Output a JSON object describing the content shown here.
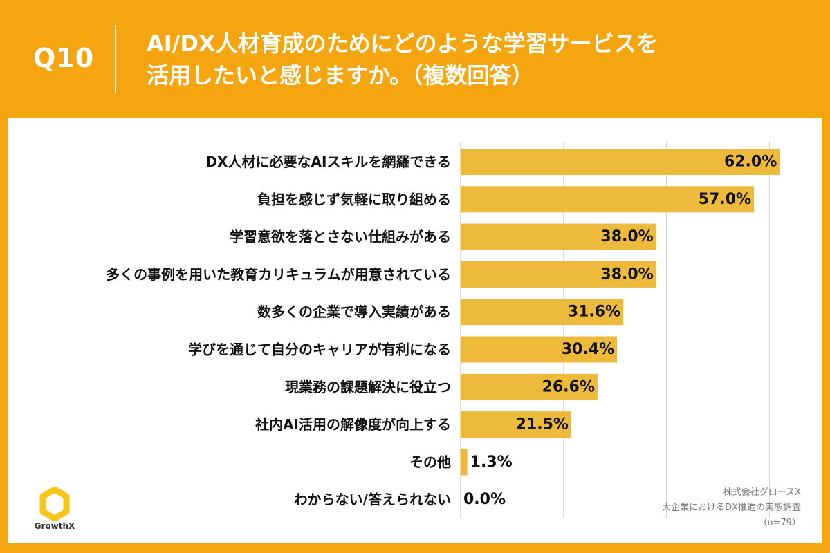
{
  "header": {
    "question": "Q10",
    "title_line1": "AI/DX人材育成のためにどのような学習サービスを",
    "title_line2": "活用したいと感じますか。（複数回答）"
  },
  "colors": {
    "background": "#F5A50F",
    "bar": "#EDBA3C",
    "grid": "#D0D0D0",
    "text": "#111111"
  },
  "chart_data": {
    "type": "bar",
    "orientation": "horizontal",
    "title": "AI/DX人材育成のためにどのような学習サービスを活用したいと感じますか。（複数回答）",
    "xlabel": "",
    "ylabel": "",
    "xlim": [
      0,
      70
    ],
    "grid": true,
    "value_suffix": "%",
    "categories": [
      "DX人材に必要なAIスキルを網羅できる",
      "負担を感じず気軽に取り組める",
      "学習意欲を落とさない仕組みがある",
      "多くの事例を用いた教育カリキュラムが用意されている",
      "数多くの企業で導入実績がある",
      "学びを通じて自分のキャリアが有利になる",
      "現業務の課題解決に役立つ",
      "社内AI活用の解像度が向上する",
      "その他",
      "わからない/答えられない"
    ],
    "values": [
      62.0,
      57.0,
      38.0,
      38.0,
      31.6,
      30.4,
      26.6,
      21.5,
      1.3,
      0.0
    ],
    "labels": [
      "62.0%",
      "57.0%",
      "38.0%",
      "38.0%",
      "31.6%",
      "30.4%",
      "26.6%",
      "21.5%",
      "1.3%",
      "0.0%"
    ]
  },
  "source": {
    "company": "株式会社グロースX",
    "survey": "大企業におけるDX推進の実態調査",
    "sample": "（n=79）"
  },
  "logo": {
    "icon": "hexagon-ring-icon",
    "name": "GrowthX"
  }
}
